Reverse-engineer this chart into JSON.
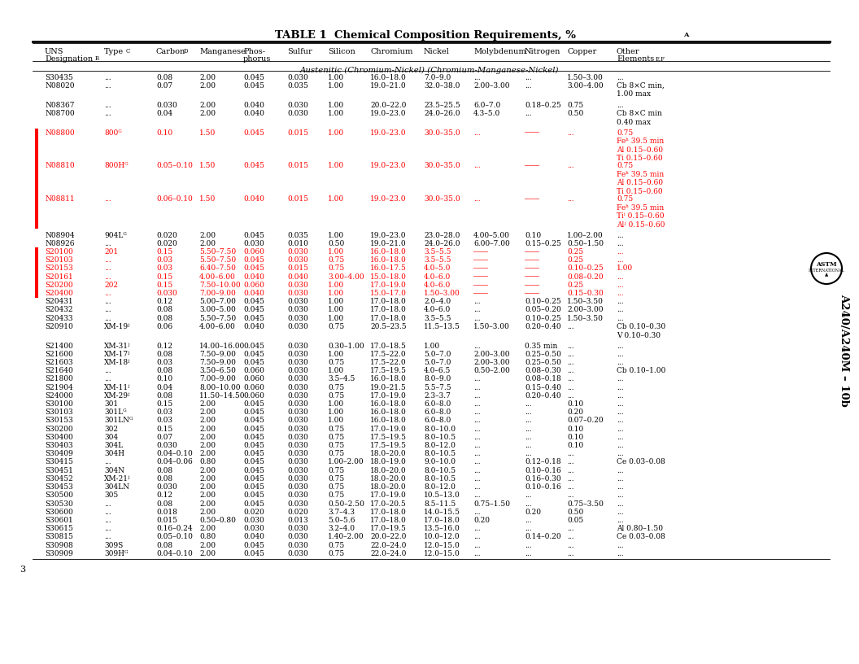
{
  "title": "TABLE 1  Chemical Composition Requirements, %",
  "title_sup": "A",
  "col_headers": [
    "UNS",
    "Type",
    "Carbon",
    "Manganese",
    "Phos-",
    "Sulfur",
    "Silicon",
    "Chromium",
    "Nickel",
    "Molybdenum",
    "Nitrogen",
    "Copper",
    "Other"
  ],
  "section_header": "Austenitic (Chromium-Nickel) (Chromium-Manganese-Nickel)",
  "page_num": "3",
  "watermark": "A240/A240M - 10b",
  "background_color": "#ffffff",
  "text_color": "#000000",
  "redline_color": "#ff0000"
}
